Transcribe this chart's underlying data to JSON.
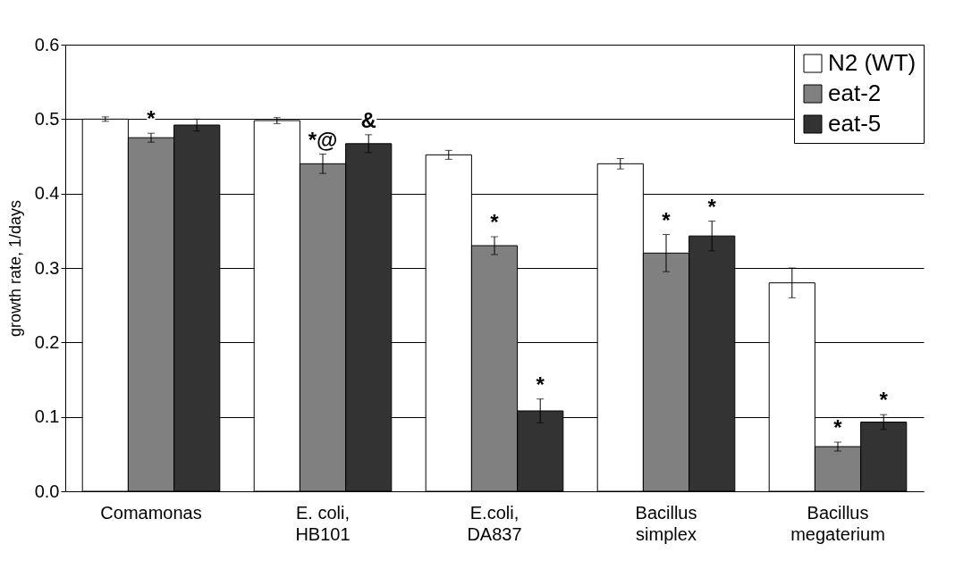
{
  "chart_data": {
    "type": "bar",
    "ylabel": "growth rate, 1/days",
    "categories": [
      "Comamonas",
      "E. coli,\nHB101",
      "E.coli,\nDA837",
      "Bacillus\nsimplex",
      "Bacillus\nmegaterium"
    ],
    "series": [
      {
        "name": "N2 (WT)",
        "color": "#ffffff",
        "values": [
          0.5,
          0.498,
          0.452,
          0.44,
          0.28
        ],
        "errors": [
          0.003,
          0.004,
          0.006,
          0.007,
          0.02
        ]
      },
      {
        "name": "eat-2",
        "color": "#808080",
        "values": [
          0.475,
          0.44,
          0.33,
          0.32,
          0.06
        ],
        "errors": [
          0.006,
          0.013,
          0.012,
          0.025,
          0.006
        ],
        "value_labels": [
          "*",
          "*@",
          "*",
          "*",
          "*"
        ]
      },
      {
        "name": "eat-5",
        "color": "#333333",
        "values": [
          0.492,
          0.467,
          0.108,
          0.343,
          0.093
        ],
        "errors": [
          0.008,
          0.012,
          0.016,
          0.02,
          0.01
        ],
        "value_labels": [
          null,
          "&",
          "*",
          "*",
          "*"
        ]
      }
    ],
    "ylim": [
      0,
      0.6
    ],
    "yticks": [
      {
        "value": 0,
        "label": "0.0"
      },
      0.1,
      0.2,
      0.3,
      0.4,
      0.5,
      0.6
    ],
    "grid": "y",
    "legend": "top right"
  }
}
